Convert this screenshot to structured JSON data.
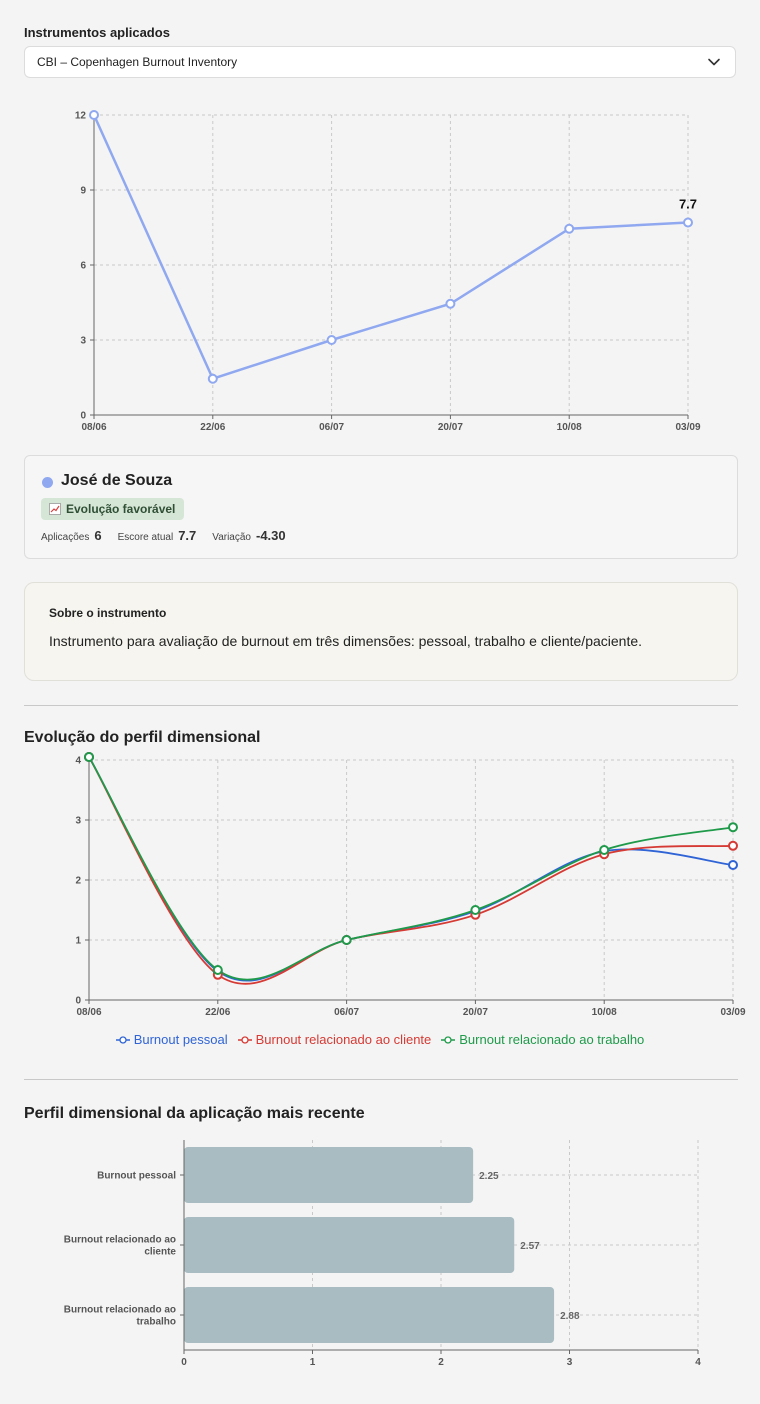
{
  "header": {
    "label": "Instrumentos aplicados"
  },
  "instrument_select": {
    "value": "CBI – Copenhagen Burnout Inventory"
  },
  "patient": {
    "name": "José de Souza",
    "color": "#8fa8f0",
    "badge": "Evolução favorável",
    "stats": {
      "aplicacoes_label": "Aplicações",
      "aplicacoes": "6",
      "escore_label": "Escore atual",
      "escore": "7.7",
      "variacao_label": "Variação",
      "variacao": "-4.30"
    }
  },
  "about": {
    "title": "Sobre o instrumento",
    "text": "Instrumento para avaliação de burnout em três dimensões: pessoal, trabalho e cliente/paciente."
  },
  "sections": {
    "evolution_title": "Evolução do perfil dimensional",
    "recent_title": "Perfil dimensional da aplicação mais recente"
  },
  "chart_data": [
    {
      "type": "line",
      "x": [
        "08/06",
        "22/06",
        "06/07",
        "20/07",
        "10/08",
        "03/09"
      ],
      "series": [
        {
          "values": [
            12,
            1.45,
            3.0,
            4.45,
            7.45,
            7.7
          ],
          "color": "#8fa8f0"
        }
      ],
      "yticks": [
        0,
        3,
        6,
        9,
        12
      ],
      "ylim": [
        0,
        12
      ],
      "last_label": "7.7",
      "grid": true
    },
    {
      "type": "line",
      "x": [
        "08/06",
        "22/06",
        "06/07",
        "20/07",
        "10/08",
        "03/09"
      ],
      "series": [
        {
          "name": "Burnout pessoal",
          "color": "#2f64d6",
          "values": [
            4.05,
            0.48,
            1.0,
            1.48,
            2.48,
            2.25
          ]
        },
        {
          "name": "Burnout relacionado ao cliente",
          "color": "#d63a34",
          "values": [
            4.05,
            0.42,
            1.0,
            1.42,
            2.43,
            2.57
          ]
        },
        {
          "name": "Burnout relacionado ao trabalho",
          "color": "#1f9a4a",
          "values": [
            4.05,
            0.5,
            1.0,
            1.5,
            2.5,
            2.88
          ]
        }
      ],
      "yticks": [
        0,
        1,
        2,
        3,
        4
      ],
      "ylim": [
        0,
        4
      ],
      "legend": "bottom",
      "grid": true
    },
    {
      "type": "bar",
      "orientation": "horizontal",
      "categories": [
        [
          "Burnout pessoal"
        ],
        [
          "Burnout relacionado ao",
          "cliente"
        ],
        [
          "Burnout relacionado ao",
          "trabalho"
        ]
      ],
      "values": [
        2.25,
        2.57,
        2.88
      ],
      "value_labels": [
        "2.25",
        "2.57",
        "2.88"
      ],
      "xticks": [
        0,
        1,
        2,
        3,
        4
      ],
      "xlim": [
        0,
        4
      ],
      "color": "#a8bcc2",
      "grid": true
    }
  ]
}
